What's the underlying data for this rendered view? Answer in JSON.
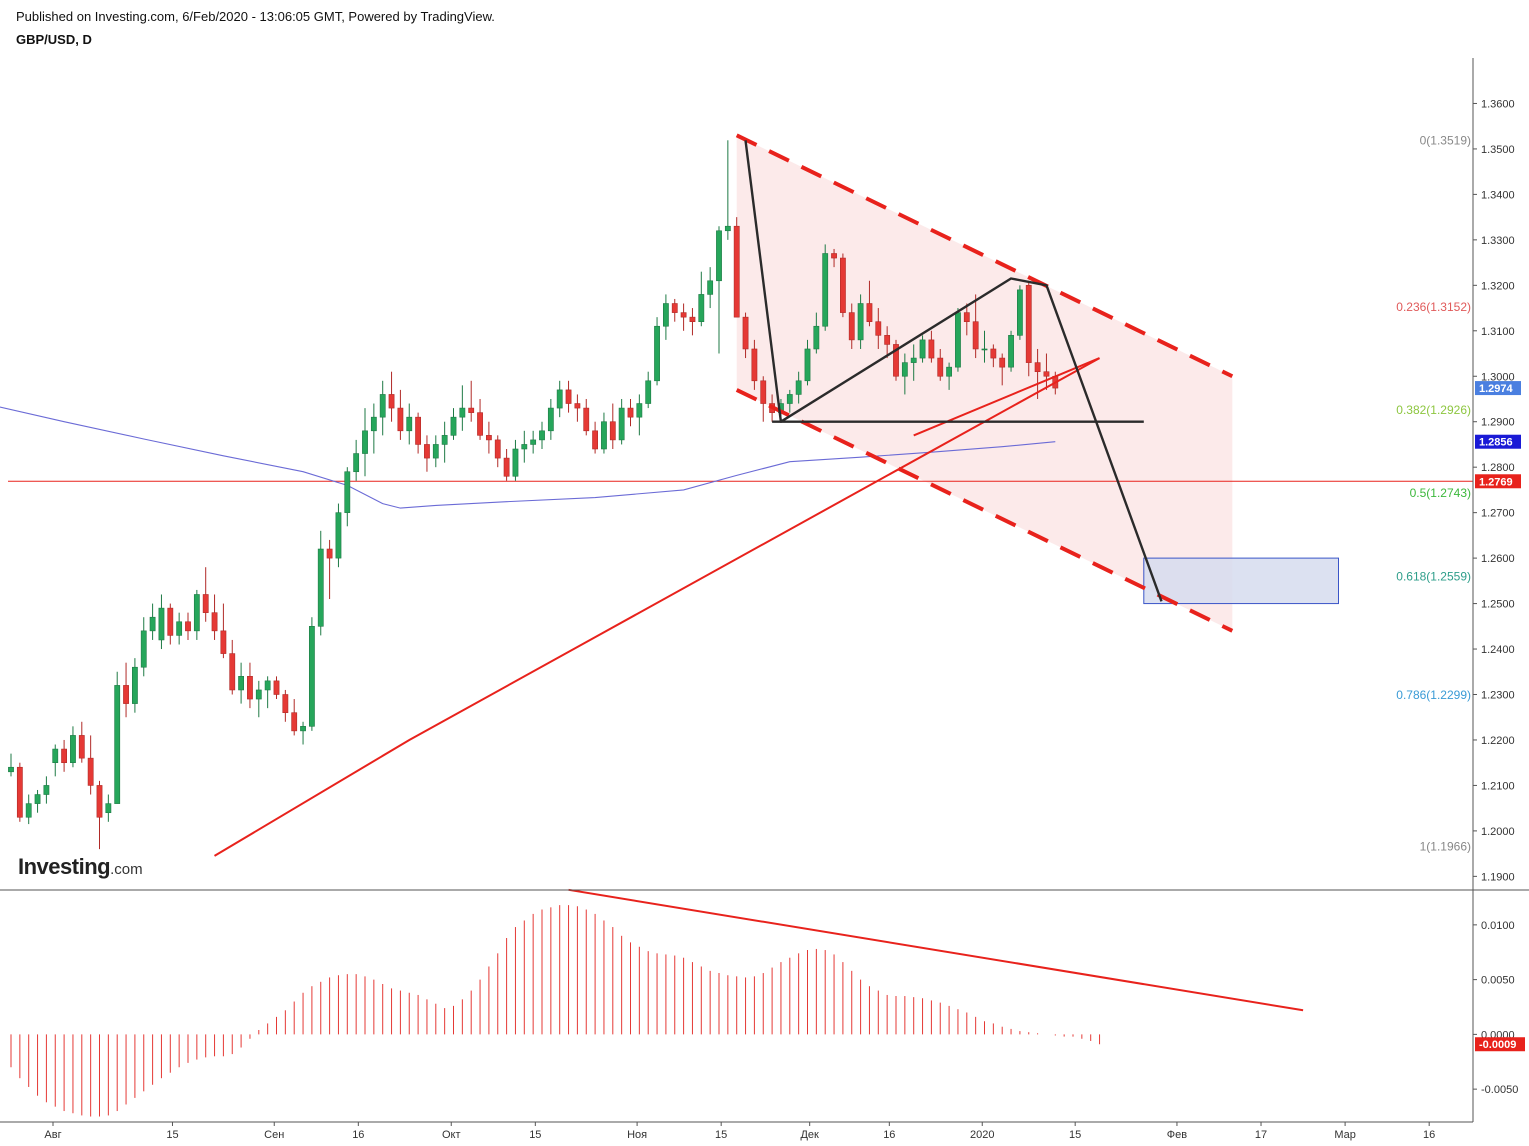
{
  "header": {
    "published": "Published on Investing.com, 6/Feb/2020 - 13:06:05 GMT, Powered by TradingView.",
    "symbol": "GBP/USD, D"
  },
  "logo": {
    "main": "Investing",
    "suffix": ".com"
  },
  "colors": {
    "up": "#26a65b",
    "down": "#e53935",
    "ma": "#6b6bd6",
    "trend": "#e8221c",
    "channel_fill": "#fbe3e3",
    "target_box": "#d6dcee"
  },
  "price_axis": {
    "ticks": [
      "1.3600",
      "1.3500",
      "1.3400",
      "1.3300",
      "1.3200",
      "1.3100",
      "1.3000",
      "1.2900",
      "1.2800",
      "1.2700",
      "1.2600",
      "1.2500",
      "1.2400",
      "1.2300",
      "1.2200",
      "1.2100",
      "1.2000",
      "1.1900"
    ],
    "badges": [
      {
        "label": "1.2974",
        "value": 1.2974,
        "color": "#4a7fe0"
      },
      {
        "label": "1.2856",
        "value": 1.2856,
        "color": "#1a1ad6"
      },
      {
        "label": "1.2769",
        "value": 1.2769,
        "color": "#e8221c"
      }
    ]
  },
  "osc_axis": {
    "ticks": [
      "0.0100",
      "0.0050",
      "0.0000",
      "-0.0050"
    ],
    "badge": {
      "label": "-0.0009",
      "value": -0.0009,
      "color": "#e8221c"
    }
  },
  "time_axis": {
    "labels": [
      "Авг",
      "15",
      "Сен",
      "16",
      "Окт",
      "15",
      "Ноя",
      "15",
      "Дек",
      "16",
      "2020",
      "15",
      "Фев",
      "17",
      "Мар",
      "16"
    ]
  },
  "fib_levels": [
    {
      "label": "0(1.3519)",
      "value": 1.3519,
      "color": "#888888"
    },
    {
      "label": "0.236(1.3152)",
      "value": 1.3152,
      "color": "#e05a5a"
    },
    {
      "label": "0.382(1.2926)",
      "value": 1.2926,
      "color": "#8dc63f"
    },
    {
      "label": "0.5(1.2743)",
      "value": 1.2743,
      "color": "#3cb83c"
    },
    {
      "label": "0.618(1.2559)",
      "value": 1.2559,
      "color": "#2e9e8a"
    },
    {
      "label": "0.786(1.2299)",
      "value": 1.2299,
      "color": "#3a9bd6"
    },
    {
      "label": "1(1.1966)",
      "value": 1.1966,
      "color": "#888888"
    }
  ],
  "chart_data": {
    "type": "candlestick",
    "title": "GBP/USD, D",
    "ylim": [
      1.187,
      1.37
    ],
    "candles": [
      [
        1.213,
        1.217,
        1.212,
        1.214
      ],
      [
        1.214,
        1.215,
        1.202,
        1.203
      ],
      [
        1.203,
        1.208,
        1.2015,
        1.206
      ],
      [
        1.206,
        1.209,
        1.204,
        1.208
      ],
      [
        1.208,
        1.212,
        1.206,
        1.21
      ],
      [
        1.215,
        1.219,
        1.212,
        1.218
      ],
      [
        1.218,
        1.22,
        1.213,
        1.215
      ],
      [
        1.215,
        1.223,
        1.214,
        1.221
      ],
      [
        1.221,
        1.224,
        1.215,
        1.216
      ],
      [
        1.216,
        1.221,
        1.208,
        1.21
      ],
      [
        1.21,
        1.211,
        1.196,
        1.203
      ],
      [
        1.204,
        1.208,
        1.202,
        1.206
      ],
      [
        1.206,
        1.235,
        1.206,
        1.232
      ],
      [
        1.232,
        1.237,
        1.225,
        1.228
      ],
      [
        1.228,
        1.238,
        1.226,
        1.236
      ],
      [
        1.236,
        1.247,
        1.234,
        1.244
      ],
      [
        1.244,
        1.25,
        1.242,
        1.247
      ],
      [
        1.242,
        1.252,
        1.24,
        1.249
      ],
      [
        1.249,
        1.25,
        1.241,
        1.243
      ],
      [
        1.243,
        1.248,
        1.241,
        1.246
      ],
      [
        1.246,
        1.248,
        1.242,
        1.244
      ],
      [
        1.244,
        1.253,
        1.242,
        1.252
      ],
      [
        1.252,
        1.258,
        1.246,
        1.248
      ],
      [
        1.248,
        1.252,
        1.242,
        1.244
      ],
      [
        1.244,
        1.25,
        1.238,
        1.239
      ],
      [
        1.239,
        1.242,
        1.23,
        1.231
      ],
      [
        1.231,
        1.237,
        1.228,
        1.234
      ],
      [
        1.234,
        1.237,
        1.227,
        1.229
      ],
      [
        1.229,
        1.233,
        1.225,
        1.231
      ],
      [
        1.231,
        1.234,
        1.227,
        1.233
      ],
      [
        1.233,
        1.234,
        1.229,
        1.23
      ],
      [
        1.23,
        1.231,
        1.224,
        1.226
      ],
      [
        1.226,
        1.229,
        1.221,
        1.222
      ],
      [
        1.222,
        1.224,
        1.219,
        1.223
      ],
      [
        1.223,
        1.247,
        1.222,
        1.245
      ],
      [
        1.245,
        1.266,
        1.243,
        1.262
      ],
      [
        1.262,
        1.264,
        1.251,
        1.26
      ],
      [
        1.26,
        1.272,
        1.258,
        1.27
      ],
      [
        1.27,
        1.28,
        1.267,
        1.279
      ],
      [
        1.279,
        1.286,
        1.277,
        1.283
      ],
      [
        1.283,
        1.293,
        1.278,
        1.288
      ],
      [
        1.288,
        1.294,
        1.283,
        1.291
      ],
      [
        1.291,
        1.299,
        1.287,
        1.296
      ],
      [
        1.296,
        1.301,
        1.29,
        1.293
      ],
      [
        1.293,
        1.297,
        1.286,
        1.288
      ],
      [
        1.288,
        1.294,
        1.285,
        1.291
      ],
      [
        1.291,
        1.292,
        1.283,
        1.285
      ],
      [
        1.285,
        1.287,
        1.279,
        1.282
      ],
      [
        1.282,
        1.287,
        1.28,
        1.285
      ],
      [
        1.285,
        1.29,
        1.281,
        1.287
      ],
      [
        1.287,
        1.293,
        1.286,
        1.291
      ],
      [
        1.291,
        1.298,
        1.288,
        1.293
      ],
      [
        1.293,
        1.299,
        1.29,
        1.292
      ],
      [
        1.292,
        1.295,
        1.286,
        1.287
      ],
      [
        1.287,
        1.29,
        1.283,
        1.286
      ],
      [
        1.286,
        1.287,
        1.28,
        1.282
      ],
      [
        1.282,
        1.284,
        1.277,
        1.278
      ],
      [
        1.278,
        1.286,
        1.277,
        1.284
      ],
      [
        1.284,
        1.288,
        1.281,
        1.285
      ],
      [
        1.285,
        1.288,
        1.283,
        1.286
      ],
      [
        1.286,
        1.29,
        1.284,
        1.288
      ],
      [
        1.288,
        1.295,
        1.286,
        1.293
      ],
      [
        1.293,
        1.299,
        1.291,
        1.297
      ],
      [
        1.297,
        1.299,
        1.292,
        1.294
      ],
      [
        1.294,
        1.296,
        1.29,
        1.293
      ],
      [
        1.293,
        1.295,
        1.287,
        1.288
      ],
      [
        1.288,
        1.29,
        1.283,
        1.284
      ],
      [
        1.284,
        1.292,
        1.283,
        1.29
      ],
      [
        1.29,
        1.294,
        1.284,
        1.286
      ],
      [
        1.286,
        1.295,
        1.285,
        1.293
      ],
      [
        1.293,
        1.295,
        1.289,
        1.291
      ],
      [
        1.291,
        1.296,
        1.287,
        1.294
      ],
      [
        1.294,
        1.301,
        1.293,
        1.299
      ],
      [
        1.299,
        1.313,
        1.298,
        1.311
      ],
      [
        1.311,
        1.318,
        1.308,
        1.316
      ],
      [
        1.316,
        1.317,
        1.312,
        1.314
      ],
      [
        1.314,
        1.316,
        1.31,
        1.313
      ],
      [
        1.313,
        1.315,
        1.309,
        1.312
      ],
      [
        1.312,
        1.323,
        1.311,
        1.318
      ],
      [
        1.318,
        1.324,
        1.315,
        1.321
      ],
      [
        1.321,
        1.333,
        1.305,
        1.332
      ],
      [
        1.332,
        1.3519,
        1.33,
        1.333
      ],
      [
        1.333,
        1.335,
        1.313,
        1.313
      ],
      [
        1.313,
        1.314,
        1.304,
        1.306
      ],
      [
        1.306,
        1.308,
        1.297,
        1.299
      ],
      [
        1.299,
        1.3,
        1.29,
        1.294
      ],
      [
        1.294,
        1.296,
        1.29,
        1.292
      ],
      [
        1.292,
        1.295,
        1.2905,
        1.294
      ],
      [
        1.294,
        1.297,
        1.292,
        1.296
      ],
      [
        1.296,
        1.301,
        1.294,
        1.299
      ],
      [
        1.299,
        1.308,
        1.298,
        1.306
      ],
      [
        1.306,
        1.314,
        1.305,
        1.311
      ],
      [
        1.311,
        1.329,
        1.31,
        1.327
      ],
      [
        1.327,
        1.328,
        1.324,
        1.326
      ],
      [
        1.326,
        1.327,
        1.313,
        1.314
      ],
      [
        1.314,
        1.316,
        1.306,
        1.308
      ],
      [
        1.308,
        1.318,
        1.306,
        1.316
      ],
      [
        1.316,
        1.321,
        1.311,
        1.312
      ],
      [
        1.312,
        1.315,
        1.306,
        1.309
      ],
      [
        1.309,
        1.311,
        1.304,
        1.307
      ],
      [
        1.307,
        1.308,
        1.299,
        1.3
      ],
      [
        1.3,
        1.305,
        1.296,
        1.303
      ],
      [
        1.303,
        1.307,
        1.299,
        1.304
      ],
      [
        1.304,
        1.309,
        1.303,
        1.308
      ],
      [
        1.308,
        1.31,
        1.303,
        1.304
      ],
      [
        1.304,
        1.306,
        1.299,
        1.3
      ],
      [
        1.3,
        1.303,
        1.297,
        1.302
      ],
      [
        1.302,
        1.315,
        1.301,
        1.314
      ],
      [
        1.314,
        1.316,
        1.309,
        1.312
      ],
      [
        1.312,
        1.318,
        1.304,
        1.306
      ],
      [
        1.306,
        1.31,
        1.303,
        1.306
      ],
      [
        1.306,
        1.307,
        1.302,
        1.304
      ],
      [
        1.304,
        1.305,
        1.298,
        1.302
      ],
      [
        1.302,
        1.31,
        1.301,
        1.309
      ],
      [
        1.309,
        1.32,
        1.308,
        1.319
      ],
      [
        1.32,
        1.321,
        1.3,
        1.303
      ],
      [
        1.303,
        1.306,
        1.295,
        1.301
      ],
      [
        1.301,
        1.305,
        1.297,
        1.3
      ],
      [
        1.3,
        1.301,
        1.296,
        1.2974
      ]
    ],
    "ma_points": [
      [
        -3,
        1.294
      ],
      [
        6,
        1.29
      ],
      [
        15,
        1.2862
      ],
      [
        24,
        1.2825
      ],
      [
        33,
        1.279
      ],
      [
        38,
        1.276
      ],
      [
        42,
        1.272
      ],
      [
        44,
        1.271
      ],
      [
        48,
        1.2716
      ],
      [
        56,
        1.2724
      ],
      [
        66,
        1.2733
      ],
      [
        76,
        1.275
      ],
      [
        82,
        1.2782
      ],
      [
        88,
        1.2812
      ],
      [
        96,
        1.2822
      ],
      [
        104,
        1.2833
      ],
      [
        112,
        1.2845
      ],
      [
        118,
        1.2856
      ]
    ],
    "channel": {
      "upper": [
        [
          82,
          1.353
        ],
        [
          138,
          1.3
        ]
      ],
      "lower": [
        [
          82,
          1.297
        ],
        [
          138,
          1.244
        ]
      ]
    },
    "trendlines": [
      {
        "points": [
          [
            23,
            1.1945
          ],
          [
            45,
            1.22
          ],
          [
            123,
            1.304
          ]
        ],
        "color": "#e8221c"
      },
      {
        "points": [
          [
            102,
            1.287
          ],
          [
            123,
            1.304
          ]
        ],
        "color": "#e8221c"
      }
    ],
    "pattern_lines": [
      [
        [
          83,
          1.3519
        ],
        [
          87,
          1.29
        ],
        [
          113,
          1.3215
        ],
        [
          117,
          1.32
        ],
        [
          130,
          1.2505
        ]
      ],
      [
        [
          86,
          1.29
        ],
        [
          128,
          1.29
        ]
      ]
    ],
    "horizontal_line": 1.2769,
    "target_box": {
      "x0": 128,
      "x1": 150,
      "y0": 1.25,
      "y1": 1.26
    },
    "osc_ylim": [
      -0.008,
      0.013
    ],
    "osc_values": [
      -0.003,
      -0.004,
      -0.0048,
      -0.0056,
      -0.0062,
      -0.0066,
      -0.007,
      -0.0072,
      -0.0074,
      -0.0075,
      -0.0075,
      -0.0074,
      -0.007,
      -0.0064,
      -0.0058,
      -0.0052,
      -0.0046,
      -0.004,
      -0.0035,
      -0.003,
      -0.0026,
      -0.0023,
      -0.0021,
      -0.002,
      -0.002,
      -0.0018,
      -0.0012,
      -0.0004,
      0.0004,
      0.001,
      0.0016,
      0.0022,
      0.003,
      0.0038,
      0.0044,
      0.0048,
      0.0052,
      0.0054,
      0.0055,
      0.0055,
      0.0053,
      0.005,
      0.0046,
      0.0042,
      0.004,
      0.0038,
      0.0036,
      0.0032,
      0.0028,
      0.0024,
      0.0026,
      0.0032,
      0.004,
      0.005,
      0.0062,
      0.0074,
      0.0088,
      0.0098,
      0.0104,
      0.011,
      0.0114,
      0.0116,
      0.0118,
      0.0118,
      0.0117,
      0.0114,
      0.011,
      0.0104,
      0.0098,
      0.009,
      0.0084,
      0.008,
      0.0076,
      0.0074,
      0.0073,
      0.0072,
      0.007,
      0.0066,
      0.0062,
      0.0058,
      0.0056,
      0.0054,
      0.0053,
      0.0052,
      0.0053,
      0.0056,
      0.0061,
      0.0066,
      0.007,
      0.0074,
      0.0077,
      0.0078,
      0.0077,
      0.0073,
      0.0066,
      0.0058,
      0.005,
      0.0044,
      0.004,
      0.0036,
      0.0035,
      0.0035,
      0.0034,
      0.0033,
      0.0031,
      0.0029,
      0.0026,
      0.0023,
      0.002,
      0.0016,
      0.0012,
      0.001,
      0.0007,
      0.0005,
      0.0003,
      0.0002,
      0.0001,
      0.0,
      -0.0001,
      -0.0002,
      -0.0002,
      -0.0004,
      -0.0006,
      -0.0009
    ],
    "osc_trendline": [
      [
        63,
        0.0132
      ],
      [
        146,
        0.0022
      ]
    ]
  }
}
